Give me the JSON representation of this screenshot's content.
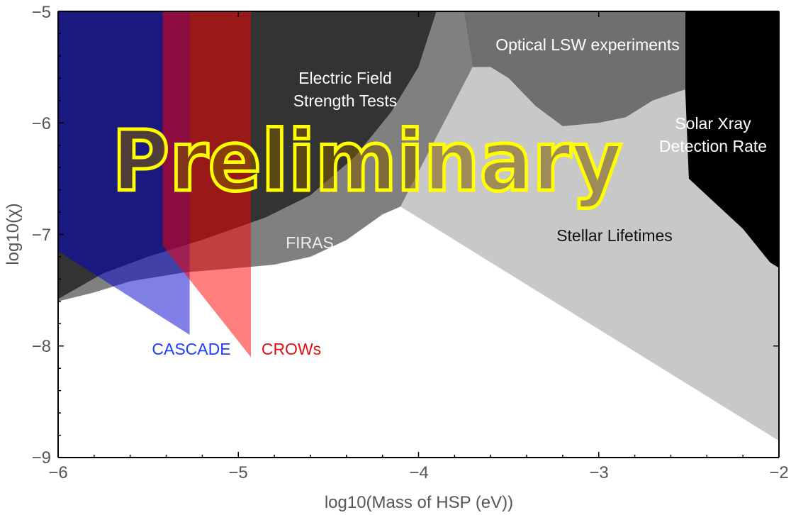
{
  "chart_data": {
    "type": "area",
    "title": "",
    "xlabel": "log10(Mass of HSP (eV))",
    "ylabel": "log10(χ)",
    "xlim": [
      -6,
      -2
    ],
    "ylim": [
      -9,
      -5
    ],
    "xticks": [
      -6,
      -5,
      -4,
      -3,
      -2
    ],
    "yticks": [
      -9,
      -8,
      -7,
      -6,
      -5
    ],
    "tick_labels": {
      "x": [
        "−6",
        "−5",
        "−4",
        "−3",
        "−2"
      ],
      "y": [
        "−9",
        "−8",
        "−7",
        "−6",
        "−5"
      ]
    },
    "regions": [
      {
        "name": "Electric Field Strength Tests",
        "label": "Electric Field\nStrength Tests",
        "color": "#333333",
        "polygon": [
          [
            -6,
            -5
          ],
          [
            -3.9,
            -5
          ],
          [
            -4.0,
            -5.5
          ],
          [
            -4.15,
            -5.9
          ],
          [
            -4.35,
            -6.3
          ],
          [
            -4.6,
            -6.65
          ],
          [
            -4.85,
            -6.85
          ],
          [
            -5.2,
            -7.05
          ],
          [
            -5.5,
            -7.2
          ],
          [
            -5.75,
            -7.35
          ],
          [
            -6,
            -7.58
          ]
        ]
      },
      {
        "name": "FIRAS",
        "label": "FIRAS",
        "color": "#808080",
        "polygon": [
          [
            -6,
            -7.58
          ],
          [
            -5.75,
            -7.35
          ],
          [
            -5.5,
            -7.2
          ],
          [
            -5.2,
            -7.05
          ],
          [
            -4.85,
            -6.85
          ],
          [
            -4.6,
            -6.65
          ],
          [
            -4.35,
            -6.3
          ],
          [
            -4.15,
            -5.9
          ],
          [
            -4.0,
            -5.5
          ],
          [
            -3.9,
            -5
          ],
          [
            -3.75,
            -5
          ],
          [
            -3.7,
            -5.5
          ],
          [
            -4.1,
            -6.75
          ],
          [
            -4.2,
            -6.82
          ],
          [
            -4.4,
            -7.05
          ],
          [
            -4.6,
            -7.2
          ],
          [
            -4.8,
            -7.27
          ],
          [
            -5.0,
            -7.3
          ],
          [
            -5.3,
            -7.34
          ],
          [
            -5.6,
            -7.42
          ],
          [
            -5.8,
            -7.52
          ],
          [
            -6,
            -7.6
          ]
        ]
      },
      {
        "name": "Optical LSW experiments",
        "label": "Optical LSW experiments",
        "color": "#6f6f6f",
        "polygon": [
          [
            -3.75,
            -5
          ],
          [
            -2.52,
            -5
          ],
          [
            -2.52,
            -5.7
          ],
          [
            -2.7,
            -5.8
          ],
          [
            -2.85,
            -5.95
          ],
          [
            -3.0,
            -6.0
          ],
          [
            -3.2,
            -6.03
          ],
          [
            -3.35,
            -5.85
          ],
          [
            -3.5,
            -5.6
          ],
          [
            -3.6,
            -5.5
          ],
          [
            -3.7,
            -5.5
          ]
        ]
      },
      {
        "name": "Stellar Lifetimes",
        "label": "Stellar Lifetimes",
        "color": "#c8c8c8",
        "polygon": [
          [
            -4.1,
            -6.75
          ],
          [
            -3.7,
            -5.5
          ],
          [
            -3.6,
            -5.5
          ],
          [
            -3.5,
            -5.6
          ],
          [
            -3.35,
            -5.85
          ],
          [
            -3.2,
            -6.03
          ],
          [
            -3.0,
            -6.0
          ],
          [
            -2.85,
            -5.95
          ],
          [
            -2.7,
            -5.8
          ],
          [
            -2.52,
            -5.7
          ],
          [
            -2.52,
            -5
          ],
          [
            -2.5,
            -5
          ],
          [
            -2.5,
            -6.5
          ],
          [
            -2.2,
            -6.95
          ],
          [
            -2.05,
            -7.25
          ],
          [
            -2,
            -7.3
          ],
          [
            -2,
            -8.85
          ],
          [
            -4.1,
            -6.75
          ]
        ]
      },
      {
        "name": "Solar Xray Detection Rate",
        "label": "Solar Xray\nDetection Rate",
        "color": "#000000",
        "polygon": [
          [
            -2.52,
            -5
          ],
          [
            -2,
            -5
          ],
          [
            -2,
            -7.3
          ],
          [
            -2.05,
            -7.25
          ],
          [
            -2.2,
            -6.95
          ],
          [
            -2.5,
            -6.5
          ],
          [
            -2.52,
            -5.7
          ]
        ]
      },
      {
        "name": "CASCADE",
        "label": "CASCADE",
        "color": "#0000cc",
        "opacity": 0.5,
        "polygon": [
          [
            -6,
            -5
          ],
          [
            -5.27,
            -5
          ],
          [
            -5.27,
            -7.9
          ],
          [
            -6,
            -7.15
          ]
        ]
      },
      {
        "name": "CROWs",
        "label": "CROWs",
        "color": "#ff0000",
        "opacity": 0.5,
        "polygon": [
          [
            -5.42,
            -5
          ],
          [
            -4.93,
            -5
          ],
          [
            -4.93,
            -8.1
          ],
          [
            -5.42,
            -7.1
          ]
        ]
      }
    ],
    "watermark": "Preliminary"
  }
}
